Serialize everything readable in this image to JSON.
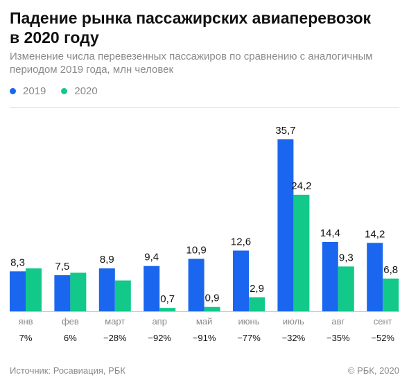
{
  "title_line1": "Падение рынка пассажирских авиаперевозок",
  "title_line2": "в 2020 году",
  "subtitle_line1": "Изменение числа перевезенных пассажиров по сравнению с аналогичным",
  "subtitle_line2": "периодом 2019 года, млн человек",
  "legend": [
    {
      "label": "2019",
      "color": "#1a66ee"
    },
    {
      "label": "2020",
      "color": "#12c98a"
    }
  ],
  "footer": {
    "source": "Источник: Росавиация, РБК",
    "copyright": "© РБК, 2020"
  },
  "chart_data": {
    "type": "bar",
    "categories": [
      "янв",
      "фев",
      "март",
      "апр",
      "май",
      "июнь",
      "июль",
      "авг",
      "сент"
    ],
    "series": [
      {
        "name": "2019",
        "color": "#1a66ee",
        "values": [
          8.3,
          7.5,
          8.9,
          9.4,
          10.9,
          12.6,
          35.7,
          14.4,
          14.2
        ],
        "labels": [
          "8,3",
          "7,5",
          "8,9",
          "9,4",
          "10,9",
          "12,6",
          "35,7",
          "14,4",
          "14,2"
        ]
      },
      {
        "name": "2020",
        "color": "#12c98a",
        "values": [
          8.9,
          8.0,
          6.4,
          0.7,
          0.9,
          2.9,
          24.2,
          9.3,
          6.8
        ],
        "labels": [
          "",
          "",
          "",
          "0,7",
          "0,9",
          "2,9",
          "24,2",
          "9,3",
          "6,8"
        ]
      }
    ],
    "change_labels": [
      "7%",
      "6%",
      "−28%",
      "−92%",
      "−91%",
      "−77%",
      "−32%",
      "−35%",
      "−52%"
    ],
    "ylim": [
      0,
      36
    ],
    "grid": false,
    "legend_position": "top-left"
  }
}
